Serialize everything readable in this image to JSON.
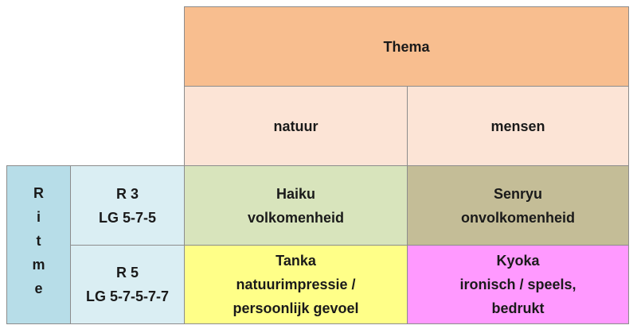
{
  "table": {
    "header": "Thema",
    "row_header": "Ritme",
    "columns": [
      "natuur",
      "mensen"
    ],
    "rows": [
      {
        "label": [
          "R 3",
          "LG 5-7-5"
        ],
        "cells": [
          [
            "Haiku",
            "volkomenheid"
          ],
          [
            "Senryu",
            "onvolkomenheid"
          ]
        ]
      },
      {
        "label": [
          "R 5",
          "LG 5-7-5-7-7"
        ],
        "cells": [
          [
            "Tanka",
            "natuurimpressie /",
            "persoonlijk gevoel"
          ],
          [
            "Kyoka",
            "ironisch / speels,",
            "bedrukt"
          ]
        ]
      }
    ]
  }
}
